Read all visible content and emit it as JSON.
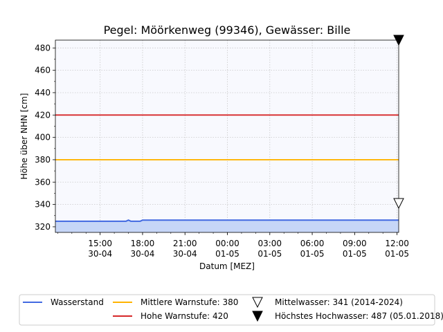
{
  "chart_data": {
    "type": "line",
    "title": "Pegel:  Möörkenweg (99346), Gewässer:  Bille",
    "xlabel": "Datum [MEZ]",
    "ylabel": "Höhe über NHN [cm]",
    "ylim": [
      315,
      487
    ],
    "xlim": [
      "2024-04-30 11:50",
      "2024-05-01 12:07"
    ],
    "y_ticks": [
      320,
      340,
      360,
      380,
      400,
      420,
      440,
      460,
      480
    ],
    "x_ticks": [
      {
        "time": "2024-04-30 15:00",
        "label_time": "15:00",
        "label_date": "30-04"
      },
      {
        "time": "2024-04-30 18:00",
        "label_time": "18:00",
        "label_date": "30-04"
      },
      {
        "time": "2024-04-30 21:00",
        "label_time": "21:00",
        "label_date": "30-04"
      },
      {
        "time": "2024-05-01 00:00",
        "label_time": "00:00",
        "label_date": "01-05"
      },
      {
        "time": "2024-05-01 03:00",
        "label_time": "03:00",
        "label_date": "01-05"
      },
      {
        "time": "2024-05-01 06:00",
        "label_time": "06:00",
        "label_date": "01-05"
      },
      {
        "time": "2024-05-01 09:00",
        "label_time": "09:00",
        "label_date": "01-05"
      },
      {
        "time": "2024-05-01 12:00",
        "label_time": "12:00",
        "label_date": "01-05"
      }
    ],
    "grid": true,
    "legend_position": "bottom",
    "series": [
      {
        "name": "Wasserstand",
        "color": "#4169e1",
        "fill_color": "#c6d6f7",
        "points": [
          {
            "x": "2024-04-30 11:50",
            "y": 325
          },
          {
            "x": "2024-04-30 16:50",
            "y": 325
          },
          {
            "x": "2024-04-30 17:00",
            "y": 326
          },
          {
            "x": "2024-04-30 17:10",
            "y": 325
          },
          {
            "x": "2024-04-30 17:50",
            "y": 325
          },
          {
            "x": "2024-04-30 18:00",
            "y": 326
          },
          {
            "x": "2024-04-30 18:10",
            "y": 326
          },
          {
            "x": "2024-05-01 12:07",
            "y": 326
          }
        ]
      },
      {
        "name": "Mittlere Warnstufe: 380",
        "color": "#ffb300",
        "value": 380
      },
      {
        "name": "Hohe Warnstufe: 420",
        "color": "#d62728",
        "value": 420
      }
    ],
    "markers": [
      {
        "name": "Mittelwasser: 341 (2014-2024)",
        "value": 341,
        "filled": false,
        "x": "2024-05-01 12:07"
      },
      {
        "name": "Höchstes Hochwasser: 487 (05.01.2018)",
        "value": 487,
        "filled": true,
        "x": "2024-05-01 12:07"
      }
    ]
  }
}
